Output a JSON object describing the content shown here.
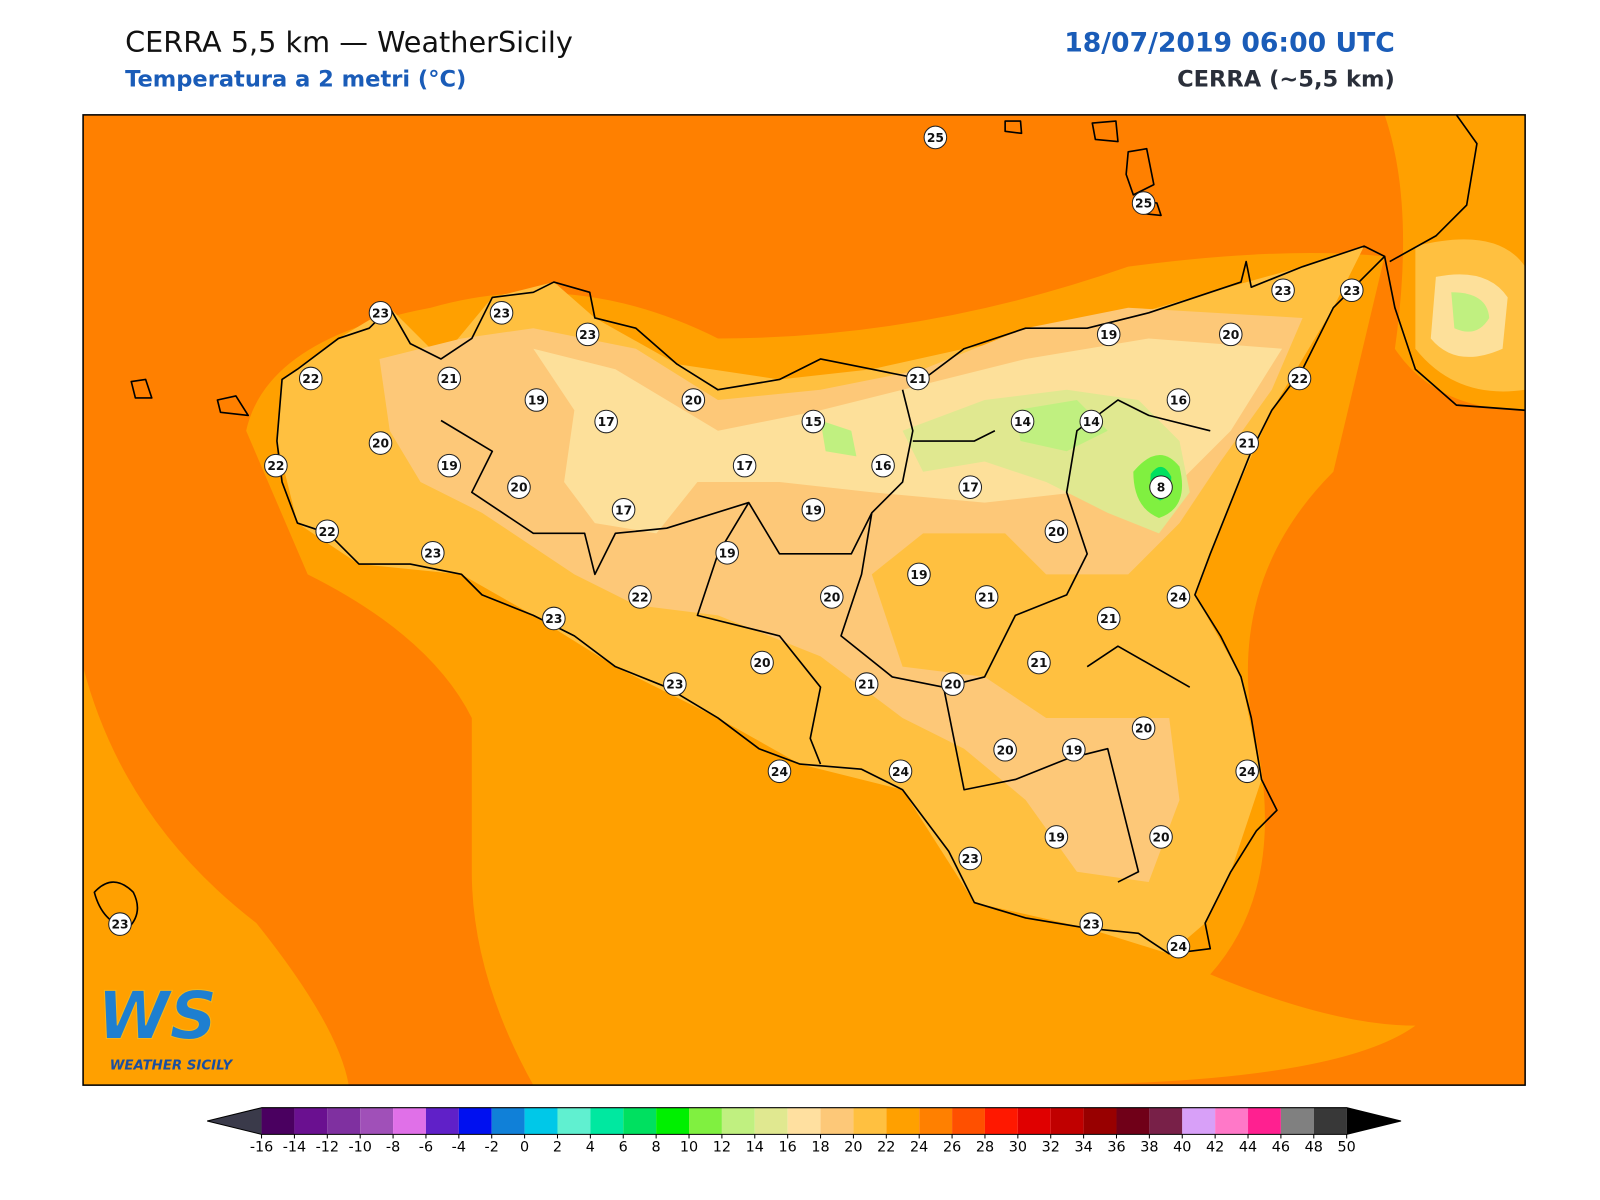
{
  "header": {
    "title": "CERRA 5,5 km — WeatherSicily",
    "subtitle": "Temperatura a 2 metri (°C)",
    "datetime": "18/07/2019 06:00 UTC",
    "model": "CERRA (~5,5 km)"
  },
  "map": {
    "stations": [
      25,
      25,
      23,
      23,
      23,
      23,
      23,
      22,
      21,
      19,
      20,
      17,
      15,
      21,
      19,
      20,
      16,
      14,
      14,
      22,
      21,
      20,
      22,
      19,
      20,
      17,
      16,
      17,
      8,
      17,
      19,
      22,
      23,
      19,
      20,
      19,
      22,
      20,
      21,
      24,
      23,
      21,
      20,
      21,
      23,
      21,
      20,
      20,
      20,
      19,
      24,
      24,
      24,
      19,
      20,
      23,
      23,
      23,
      24
    ]
  },
  "colorbar": {
    "ticks": [
      -16,
      -14,
      -12,
      -10,
      -8,
      -6,
      -4,
      -2,
      0,
      2,
      4,
      6,
      8,
      10,
      12,
      14,
      16,
      18,
      20,
      22,
      24,
      26,
      28,
      30,
      32,
      34,
      36,
      38,
      40,
      42,
      44,
      46,
      48,
      50
    ],
    "colors": [
      "#4a0060",
      "#6a1090",
      "#7f30a0",
      "#a050b8",
      "#e070e8",
      "#6020c8",
      "#0010f0",
      "#1080d8",
      "#00c8e8",
      "#60f0d0",
      "#00e8a0",
      "#00e060",
      "#00f000",
      "#80f040",
      "#c0f080",
      "#e0e890",
      "#ffe0a0",
      "#fdc878",
      "#ffc040",
      "#ffa000",
      "#ff8000",
      "#ff5000",
      "#ff1800",
      "#e00000",
      "#c00000",
      "#980000",
      "#700018",
      "#782048",
      "#d8a0f8",
      "#ff78c8",
      "#ff2090",
      "#808080",
      "#383838"
    ],
    "under_color": "#3a3a4a",
    "over_color": "#000000"
  },
  "logo": {
    "mark": "WS",
    "name": "WEATHER SICILY"
  }
}
